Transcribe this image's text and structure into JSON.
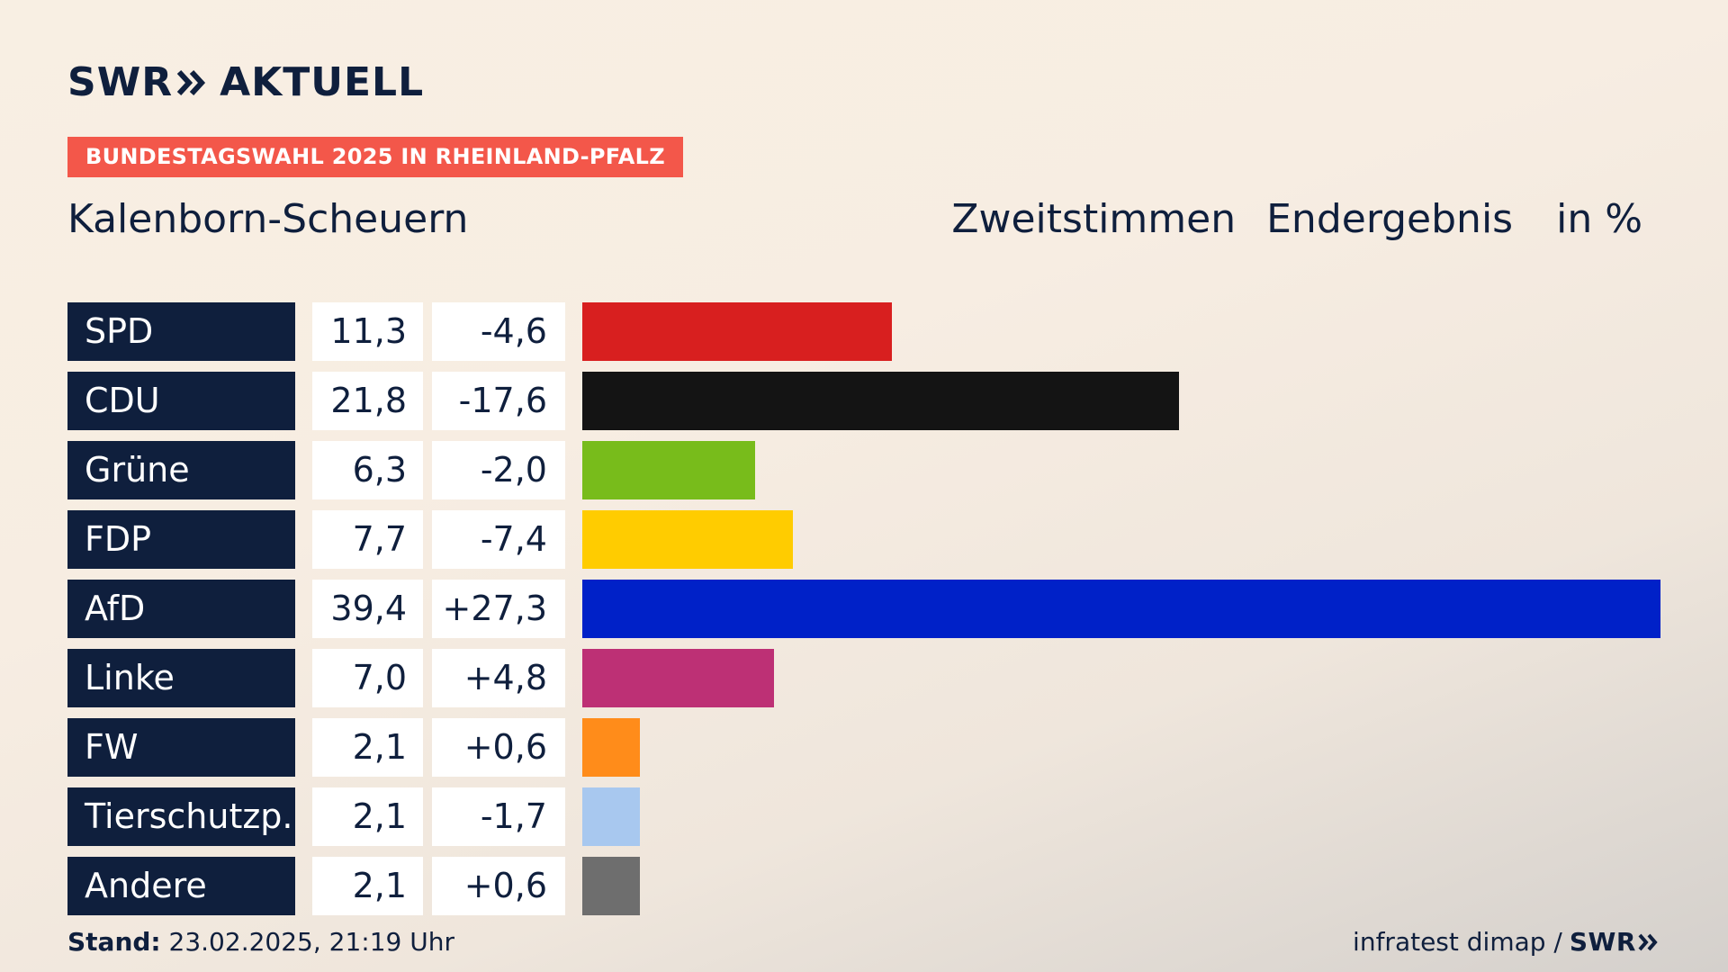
{
  "brand": {
    "logo_text_left": "SWR",
    "logo_text_right": "AKTUELL",
    "footer_logo": "SWR"
  },
  "badge": "BUNDESTAGSWAHL 2025 IN RHEINLAND-PFALZ",
  "region": "Kalenborn-Scheuern",
  "header": {
    "vote_type": "Zweitstimmen",
    "result_type": "Endergebnis",
    "unit": "in %"
  },
  "footer": {
    "stand_label": "Stand:",
    "stand_value": "23.02.2025, 21:19 Uhr",
    "source": "infratest dimap /"
  },
  "chart_data": {
    "type": "bar",
    "orientation": "horizontal",
    "categories": [
      "SPD",
      "CDU",
      "Grüne",
      "FDP",
      "AfD",
      "Linke",
      "FW",
      "Tierschutzp.",
      "Andere"
    ],
    "values": [
      11.3,
      21.8,
      6.3,
      7.7,
      39.4,
      7.0,
      2.1,
      2.1,
      2.1
    ],
    "value_labels": [
      "11,3",
      "21,8",
      "6,3",
      "7,7",
      "39,4",
      "7,0",
      "2,1",
      "2,1",
      "2,1"
    ],
    "diff_labels": [
      "-4,6",
      "-17,6",
      "-2,0",
      "-7,4",
      "+27,3",
      "+4,8",
      "+0,6",
      "-1,7",
      "+0,6"
    ],
    "diffs": [
      -4.6,
      -17.6,
      -2.0,
      -7.4,
      27.3,
      4.8,
      0.6,
      -1.7,
      0.6
    ],
    "colors": [
      "#d81f1f",
      "#141414",
      "#78bc1b",
      "#ffcc00",
      "#0021c8",
      "#bd3075",
      "#ff8c1a",
      "#a8c8ef",
      "#6e6e6e"
    ],
    "xlim": [
      0,
      39.4
    ],
    "title": "Zweitstimmen Endergebnis in %",
    "xlabel": "",
    "ylabel": ""
  }
}
